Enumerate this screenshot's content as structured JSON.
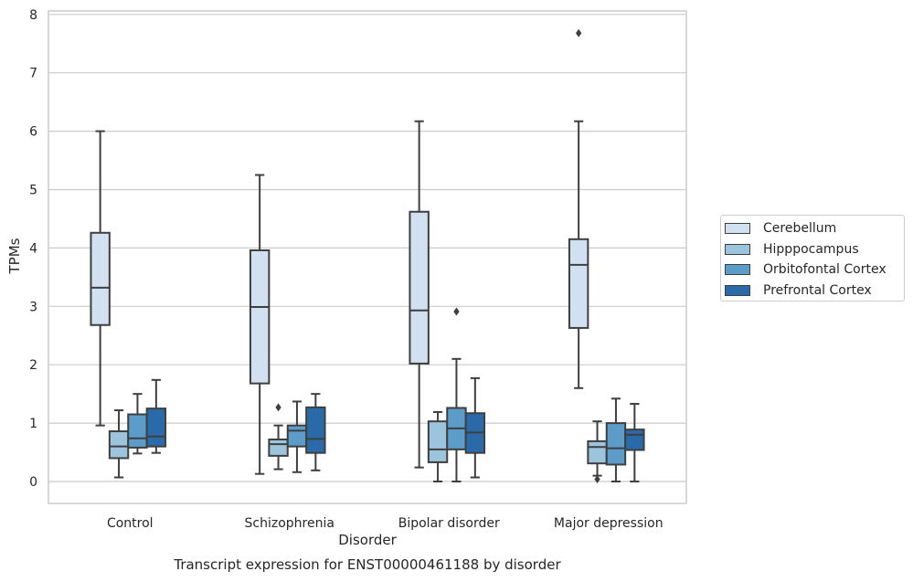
{
  "chart_data": {
    "type": "box",
    "xlabel": "Disorder",
    "ylabel": "TPMs",
    "caption": "Transcript expression for ENST00000461188 by disorder",
    "ylim": [
      -0.35,
      8.1
    ],
    "yticks": [
      0,
      1,
      2,
      3,
      4,
      5,
      6,
      7,
      8
    ],
    "grid": "horizontal",
    "legend_position": "right",
    "categories": [
      "Control",
      "Schizophrenia",
      "Bipolar disorder",
      "Major depression"
    ],
    "series": [
      {
        "name": "Cerebellum",
        "color": "#d1e1f1",
        "boxes": [
          {
            "whisker_low": 0.96,
            "q1": 2.68,
            "median": 3.32,
            "q3": 4.26,
            "whisker_high": 6.0,
            "outliers": []
          },
          {
            "whisker_low": 0.13,
            "q1": 1.68,
            "median": 2.99,
            "q3": 3.96,
            "whisker_high": 5.25,
            "outliers": []
          },
          {
            "whisker_low": 0.24,
            "q1": 2.02,
            "median": 2.93,
            "q3": 4.62,
            "whisker_high": 6.17,
            "outliers": []
          },
          {
            "whisker_low": 1.6,
            "q1": 2.63,
            "median": 3.71,
            "q3": 4.15,
            "whisker_high": 6.17,
            "outliers": [
              7.68
            ]
          }
        ]
      },
      {
        "name": "Hipppocampus",
        "color": "#9cc4dc",
        "boxes": [
          {
            "whisker_low": 0.07,
            "q1": 0.4,
            "median": 0.6,
            "q3": 0.86,
            "whisker_high": 1.22,
            "outliers": []
          },
          {
            "whisker_low": 0.21,
            "q1": 0.44,
            "median": 0.64,
            "q3": 0.72,
            "whisker_high": 0.96,
            "outliers": [
              1.27
            ]
          },
          {
            "whisker_low": 0.0,
            "q1": 0.33,
            "median": 0.55,
            "q3": 1.03,
            "whisker_high": 1.19,
            "outliers": []
          },
          {
            "whisker_low": 0.1,
            "q1": 0.31,
            "median": 0.59,
            "q3": 0.69,
            "whisker_high": 1.03,
            "outliers": [
              0.04
            ]
          }
        ]
      },
      {
        "name": "Orbitofontal Cortex",
        "color": "#5b9cc9",
        "boxes": [
          {
            "whisker_low": 0.48,
            "q1": 0.58,
            "median": 0.74,
            "q3": 1.15,
            "whisker_high": 1.5,
            "outliers": []
          },
          {
            "whisker_low": 0.16,
            "q1": 0.6,
            "median": 0.87,
            "q3": 0.96,
            "whisker_high": 1.37,
            "outliers": []
          },
          {
            "whisker_low": 0.0,
            "q1": 0.55,
            "median": 0.91,
            "q3": 1.26,
            "whisker_high": 2.1,
            "outliers": [
              2.91
            ]
          },
          {
            "whisker_low": 0.0,
            "q1": 0.29,
            "median": 0.57,
            "q3": 1.0,
            "whisker_high": 1.42,
            "outliers": []
          }
        ]
      },
      {
        "name": "Prefrontal Cortex",
        "color": "#2b6aa8",
        "boxes": [
          {
            "whisker_low": 0.49,
            "q1": 0.6,
            "median": 0.77,
            "q3": 1.25,
            "whisker_high": 1.74,
            "outliers": []
          },
          {
            "whisker_low": 0.19,
            "q1": 0.49,
            "median": 0.73,
            "q3": 1.27,
            "whisker_high": 1.5,
            "outliers": []
          },
          {
            "whisker_low": 0.07,
            "q1": 0.49,
            "median": 0.84,
            "q3": 1.17,
            "whisker_high": 1.77,
            "outliers": []
          },
          {
            "whisker_low": 0.0,
            "q1": 0.54,
            "median": 0.8,
            "q3": 0.89,
            "whisker_high": 1.33,
            "outliers": []
          }
        ]
      }
    ]
  }
}
